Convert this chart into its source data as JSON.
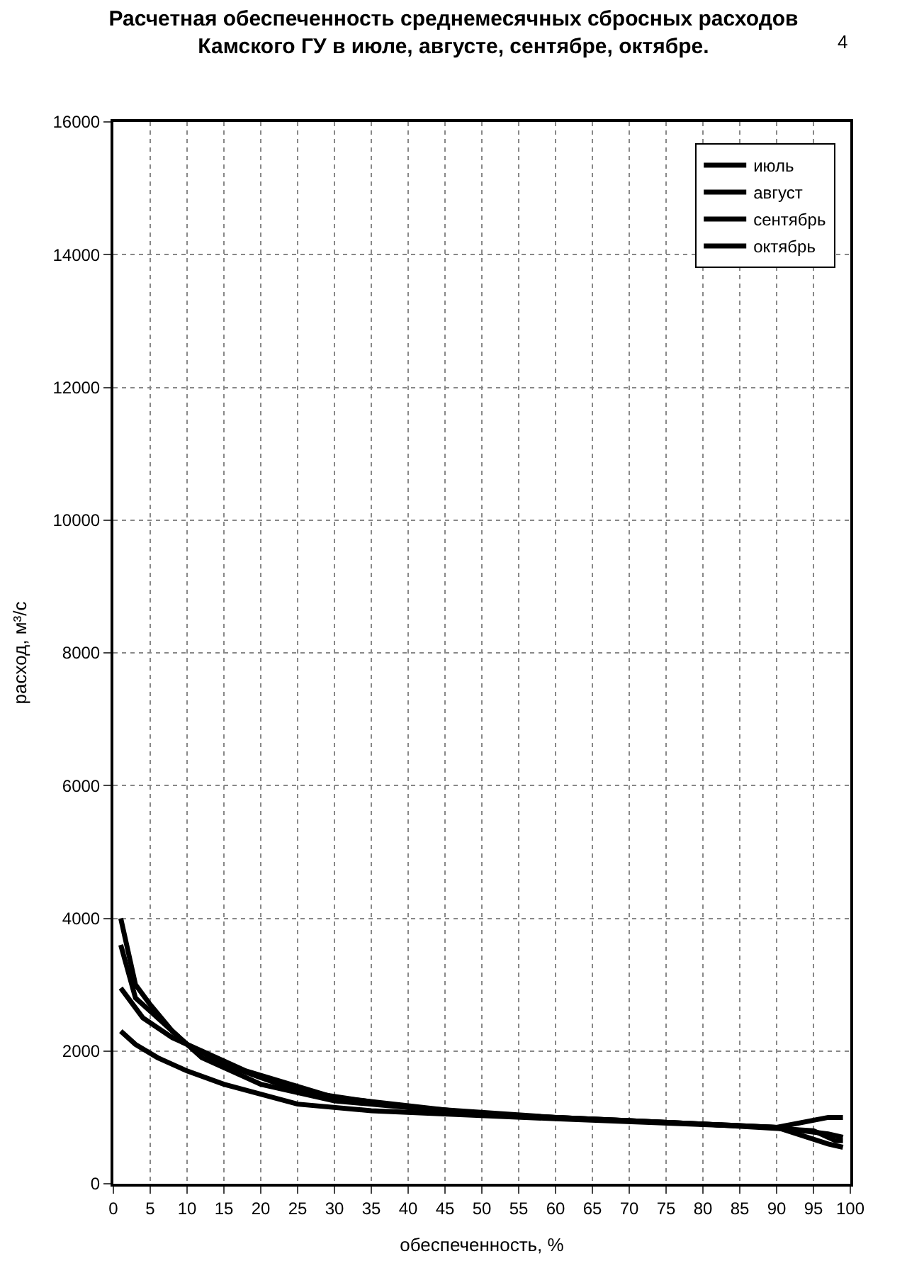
{
  "chart_data": {
    "type": "line",
    "title": "Расчетная обеспеченность среднемесячных сбросных расходов Камского ГУ в июле, августе, сентябре, октябре.",
    "xlabel": "обеспеченность, %",
    "ylabel": "расход, м³/с",
    "xlim": [
      0,
      100
    ],
    "xticks": [
      0,
      5,
      10,
      15,
      20,
      25,
      30,
      35,
      40,
      45,
      50,
      55,
      60,
      65,
      70,
      75,
      80,
      85,
      90,
      95,
      100
    ],
    "ylim": [
      0,
      16000
    ],
    "yticks": [
      0,
      2000,
      4000,
      6000,
      8000,
      10000,
      12000,
      14000,
      16000
    ],
    "grid": true,
    "legend": "top right",
    "marker": "none",
    "line_style": "solid",
    "annotations": [
      {
        "text": "4"
      }
    ],
    "series": [
      {
        "name": "июль",
        "color": "#000000",
        "x": [
          1,
          3,
          5,
          8,
          12,
          20,
          30,
          50,
          70,
          90,
          97,
          99
        ],
        "values": [
          4000,
          3000,
          2700,
          2300,
          1900,
          1500,
          1250,
          1050,
          950,
          850,
          750,
          700
        ]
      },
      {
        "name": "август",
        "color": "#000000",
        "x": [
          1,
          3,
          6,
          10,
          15,
          25,
          40,
          60,
          80,
          95,
          98,
          99
        ],
        "values": [
          3600,
          2800,
          2500,
          2100,
          1800,
          1400,
          1150,
          1000,
          900,
          800,
          650,
          650
        ]
      },
      {
        "name": "сентябрь",
        "color": "#000000",
        "x": [
          1,
          4,
          8,
          12,
          18,
          30,
          50,
          70,
          90,
          97,
          99
        ],
        "values": [
          2950,
          2500,
          2200,
          2000,
          1700,
          1300,
          1050,
          950,
          850,
          1000,
          1000
        ]
      },
      {
        "name": "октябрь",
        "color": "#000000",
        "x": [
          1,
          3,
          6,
          10,
          15,
          25,
          35,
          60,
          90,
          97,
          99
        ],
        "values": [
          2300,
          2100,
          1900,
          1700,
          1500,
          1200,
          1100,
          980,
          850,
          600,
          550
        ]
      }
    ]
  }
}
